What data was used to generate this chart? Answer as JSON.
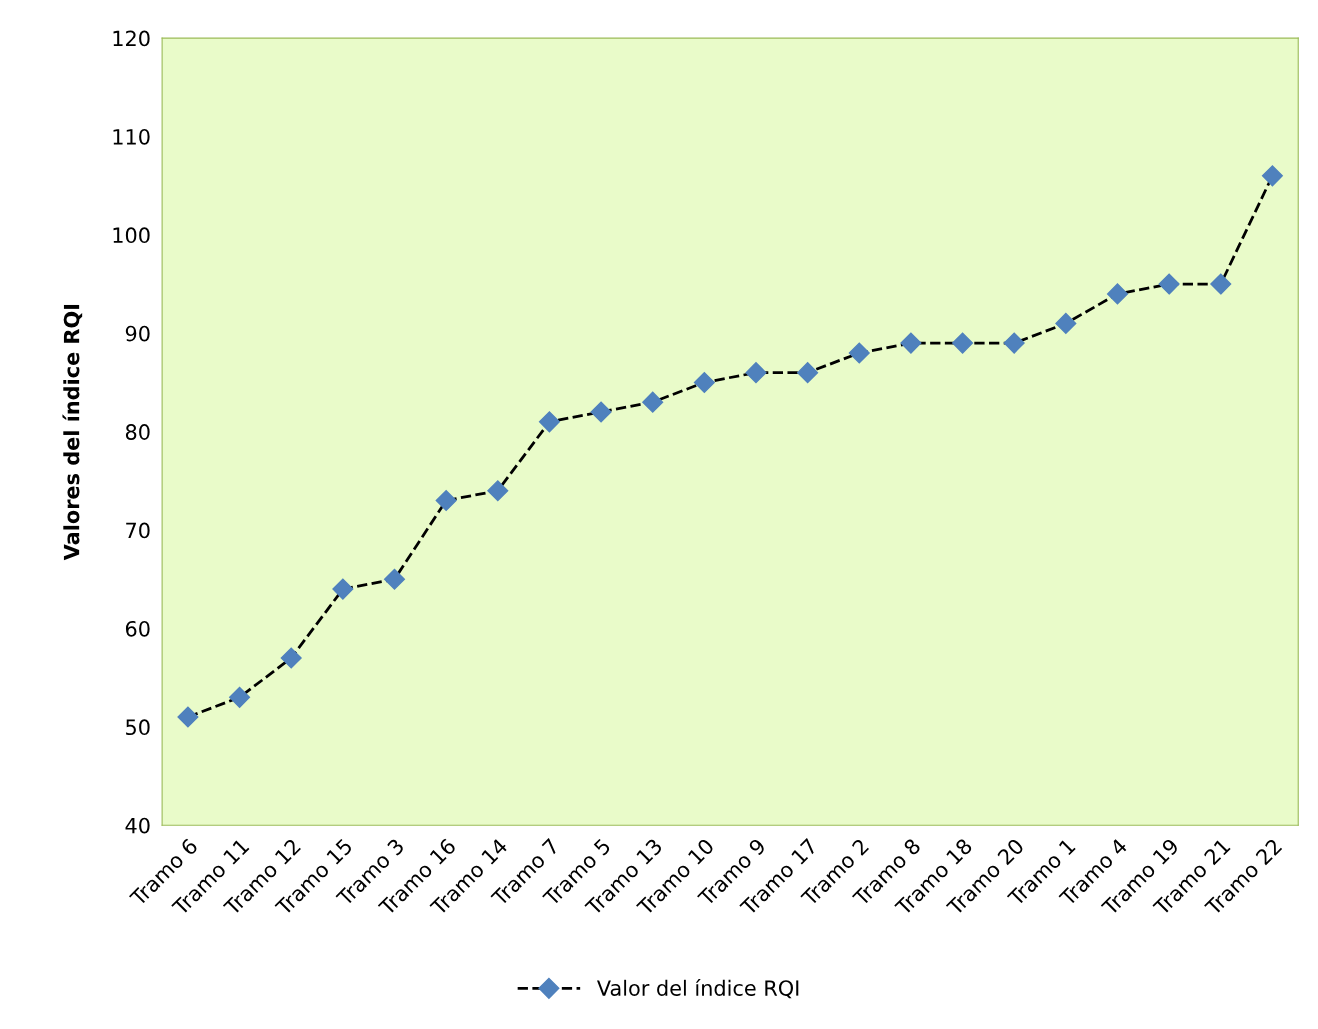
{
  "chart_data": {
    "type": "line",
    "ylabel": "Valores del índice RQI",
    "categories": [
      "Tramo 6",
      "Tramo 11",
      "Tramo 12",
      "Tramo 15",
      "Tramo 3",
      "Tramo 16",
      "Tramo 14",
      "Tramo 7",
      "Tramo 5",
      "Tramo 13",
      "Tramo 10",
      "Tramo 9",
      "Tramo 17",
      "Tramo 2",
      "Tramo 8",
      "Tramo 18",
      "Tramo 20",
      "Tramo 1",
      "Tramo 4",
      "Tramo 19",
      "Tramo 21",
      "Tramo 22"
    ],
    "series": [
      {
        "name": "Valor del índice RQI",
        "color": "#4f81bd",
        "values": [
          51,
          53,
          57,
          64,
          65,
          73,
          74,
          81,
          82,
          83,
          85,
          86,
          86,
          88,
          89,
          89,
          89,
          91,
          94,
          95,
          95,
          106
        ]
      }
    ],
    "ylim": [
      40,
      120
    ],
    "yticks": [
      40,
      50,
      60,
      70,
      80,
      90,
      100,
      110,
      120
    ],
    "marker": "diamond",
    "line_style": "dashed",
    "grid": false,
    "legend": "bottom"
  }
}
